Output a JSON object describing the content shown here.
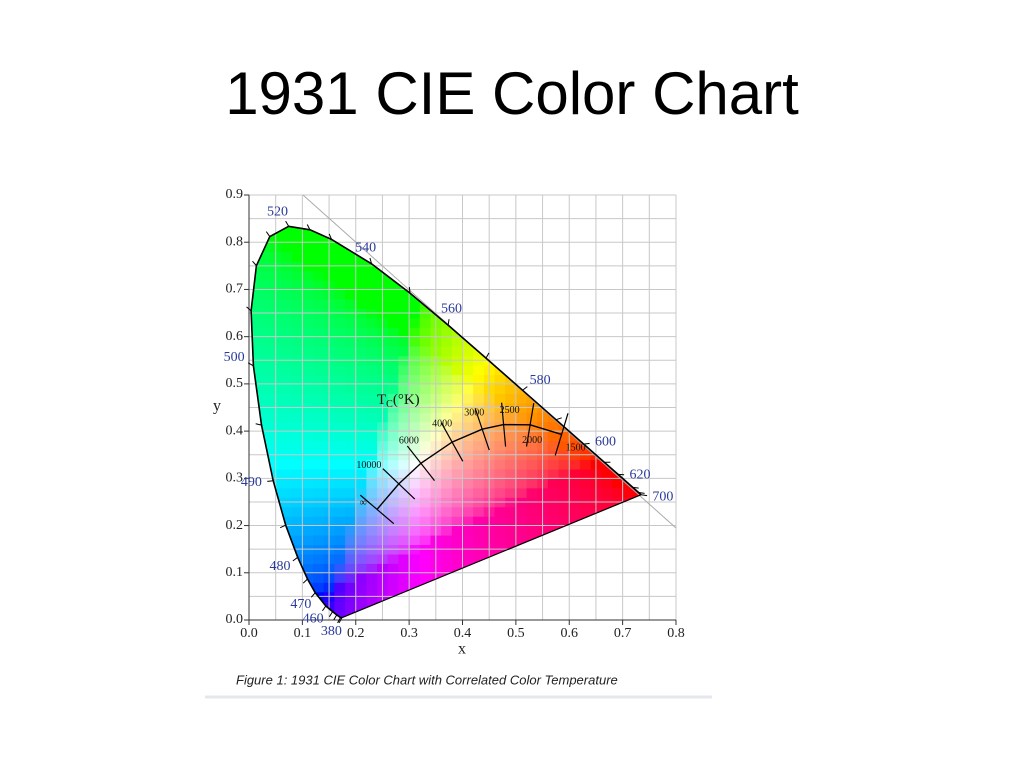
{
  "title": "1931 CIE Color Chart",
  "caption": "Figure 1: 1931 CIE Color Chart with Correlated Color Temperature",
  "chart_data": {
    "type": "chromaticity",
    "xlabel": "x",
    "ylabel": "y",
    "xlim": [
      0,
      0.8
    ],
    "ylim": [
      0,
      0.9
    ],
    "xticks": [
      {
        "value": 0,
        "label": "0.0"
      },
      0.1,
      0.2,
      0.3,
      0.4,
      0.5,
      0.6,
      0.7,
      0.8
    ],
    "yticks": [
      {
        "value": 0,
        "label": "0.0"
      },
      0.1,
      0.2,
      0.3,
      0.4,
      0.5,
      0.6,
      0.7,
      0.8,
      0.9
    ],
    "grid": true,
    "spectral_locus": {
      "x": [
        0.1741,
        0.1714,
        0.1644,
        0.1566,
        0.144,
        0.1241,
        0.1096,
        0.0913,
        0.0687,
        0.0454,
        0.0235,
        0.0082,
        0.0039,
        0.0139,
        0.0389,
        0.0743,
        0.1142,
        0.1547,
        0.2296,
        0.3016,
        0.3731,
        0.4441,
        0.5125,
        0.5752,
        0.627,
        0.6658,
        0.6915,
        0.719,
        0.73,
        0.7347
      ],
      "y": [
        0.005,
        0.0051,
        0.0109,
        0.0177,
        0.0297,
        0.0578,
        0.0868,
        0.1327,
        0.2007,
        0.295,
        0.4127,
        0.5384,
        0.6548,
        0.7502,
        0.812,
        0.8338,
        0.8262,
        0.8059,
        0.7543,
        0.6923,
        0.6245,
        0.5547,
        0.4866,
        0.4242,
        0.3725,
        0.334,
        0.3083,
        0.2809,
        0.27,
        0.2653
      ],
      "labels": [
        "380",
        null,
        null,
        null,
        "460",
        "470",
        null,
        "480",
        null,
        "490",
        null,
        "500",
        null,
        null,
        null,
        "520",
        null,
        null,
        "540",
        null,
        "560",
        null,
        "580",
        null,
        "600",
        null,
        "620",
        null,
        null,
        "700"
      ]
    },
    "planckian_locus": {
      "x": [
        0.5857,
        0.5267,
        0.477,
        0.4369,
        0.3805,
        0.3221,
        0.2807,
        0.2399
      ],
      "y": [
        0.3931,
        0.4133,
        0.4137,
        0.4041,
        0.3768,
        0.3318,
        0.2883,
        0.2342
      ],
      "labels": [
        "1500",
        "2000",
        "2500",
        "3000",
        "4000",
        "6000",
        "10000",
        "∞"
      ]
    },
    "planckian_title": [
      "T",
      "C",
      "(°K)"
    ]
  }
}
